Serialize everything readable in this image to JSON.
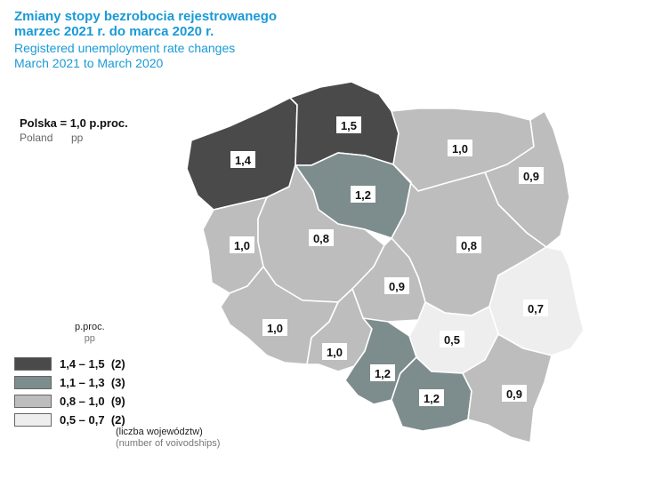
{
  "title": {
    "pl_line1": "Zmiany stopy bezrobocia rejestrowanego",
    "pl_line2": "marzec 2021 r. do marca 2020 r.",
    "en_line1": "Registered unemployment rate changes",
    "en_line2": "March 2021 to March 2020"
  },
  "national": {
    "label": "Polska = 1,0 p.proc.",
    "en_country": "Poland",
    "en_unit": "pp"
  },
  "legend": {
    "unit_pl": "p.proc.",
    "unit_en": "pp",
    "classes": [
      {
        "range": "1,4 – 1,5",
        "count": "(2)",
        "color": "#4a4a4a"
      },
      {
        "range": "1,1 – 1,3",
        "count": "(3)",
        "color": "#7d8c8c"
      },
      {
        "range": "0,8 – 1,0",
        "count": "(9)",
        "color": "#bdbdbd"
      },
      {
        "range": "0,5 – 0,7",
        "count": "(2)",
        "color": "#eeeeee"
      }
    ],
    "note_pl": "(liczba województw)",
    "note_en": "(number of voivodships)"
  },
  "regions": [
    {
      "id": "zachodniopomorskie",
      "value": "1,4",
      "class": 0
    },
    {
      "id": "pomorskie",
      "value": "1,5",
      "class": 0
    },
    {
      "id": "warminsko-mazurskie",
      "value": "1,0",
      "class": 2
    },
    {
      "id": "podlaskie",
      "value": "0,9",
      "class": 2
    },
    {
      "id": "kujawsko-pomorskie",
      "value": "1,2",
      "class": 1
    },
    {
      "id": "lubuskie",
      "value": "1,0",
      "class": 2
    },
    {
      "id": "wielkopolskie",
      "value": "0,8",
      "class": 2
    },
    {
      "id": "mazowieckie",
      "value": "0,8",
      "class": 2
    },
    {
      "id": "lodzkie",
      "value": "0,9",
      "class": 2
    },
    {
      "id": "lubelskie",
      "value": "0,7",
      "class": 3
    },
    {
      "id": "dolnoslaskie",
      "value": "1,0",
      "class": 2
    },
    {
      "id": "opolskie",
      "value": "1,0",
      "class": 2
    },
    {
      "id": "swietokrzyskie",
      "value": "0,5",
      "class": 3
    },
    {
      "id": "slaskie",
      "value": "1,2",
      "class": 1
    },
    {
      "id": "malopolskie",
      "value": "1,2",
      "class": 1
    },
    {
      "id": "podkarpackie",
      "value": "0,9",
      "class": 2
    }
  ]
}
